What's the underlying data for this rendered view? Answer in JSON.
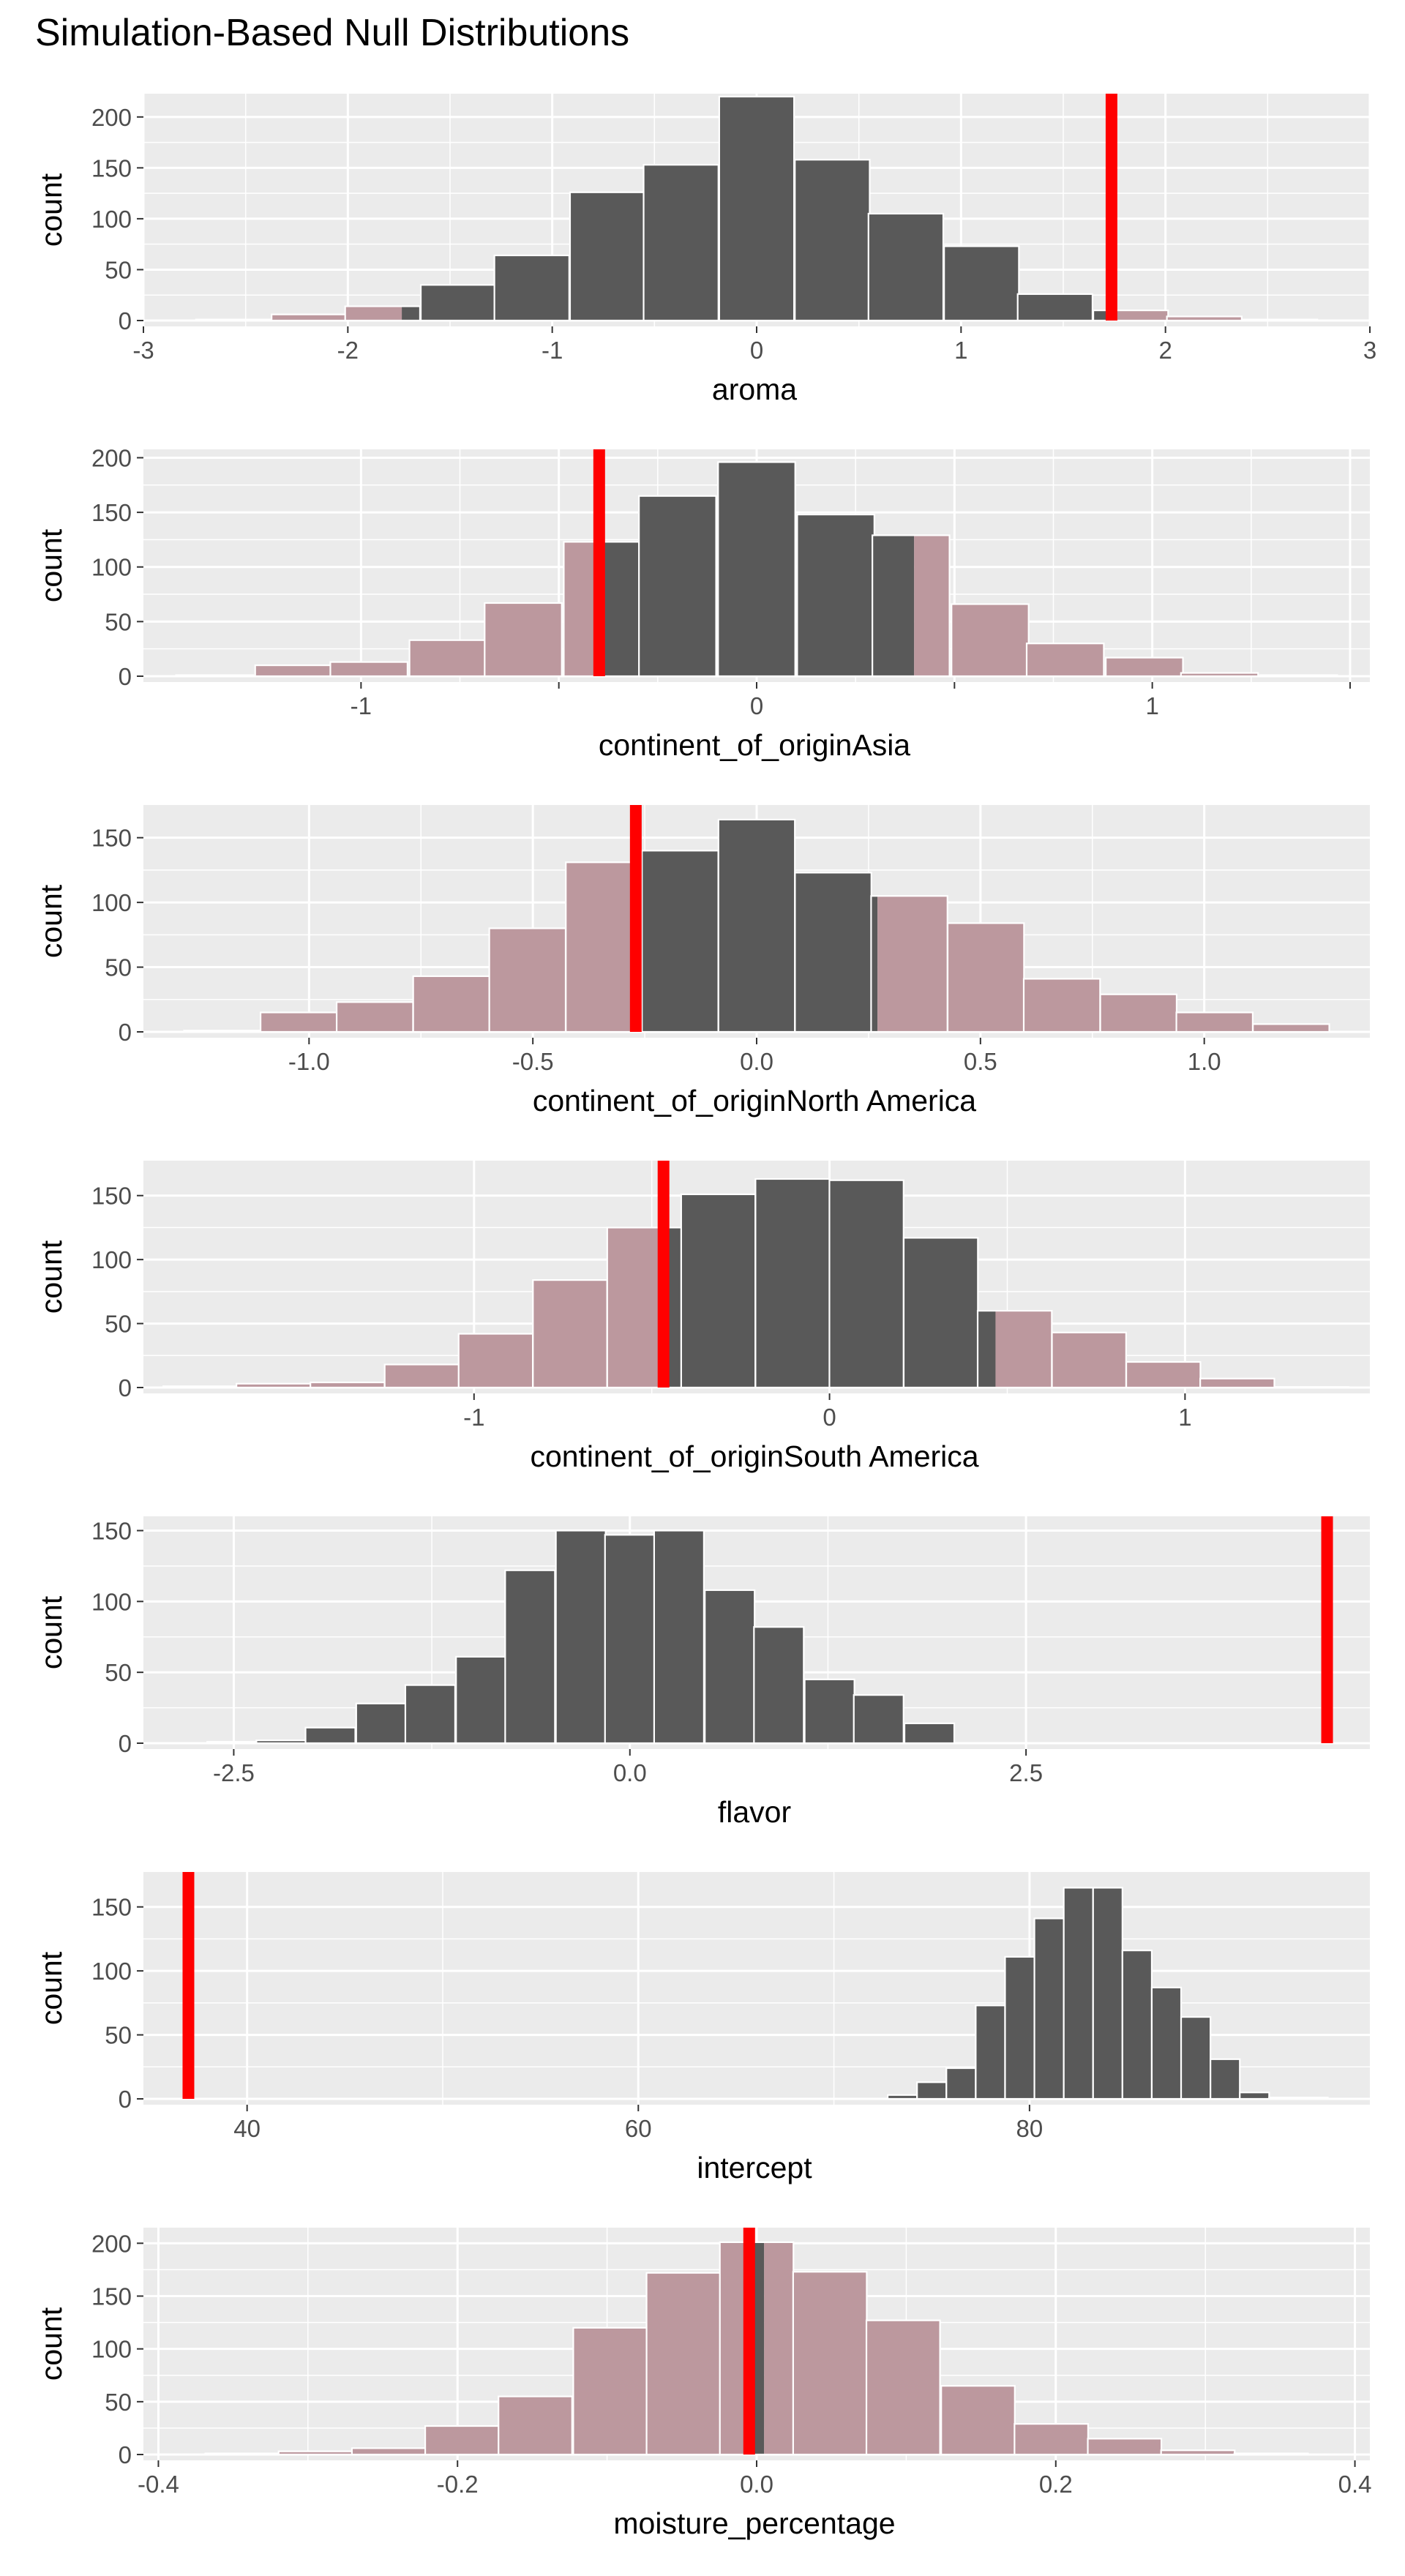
{
  "title": "Simulation-Based Null Distributions",
  "colors": {
    "panel_background": "#ebebeb",
    "gridline": "#ffffff",
    "bar_fill": "#595959",
    "shaded_fill": "#bc989e",
    "observed_line": "#ff0000",
    "bar_outline": "#ffffff"
  },
  "chart_data": [
    {
      "type": "bar",
      "xlabel": "aroma",
      "ylabel": "count",
      "xlim": [
        -3,
        3
      ],
      "ylim": [
        0,
        220
      ],
      "x_ticks": [
        -3,
        -2,
        -1,
        0,
        1,
        2,
        3
      ],
      "x_tick_labels": [
        "-3",
        "-2",
        "-1",
        "0",
        "1",
        "2",
        "3"
      ],
      "y_ticks": [
        0,
        50,
        100,
        150,
        200
      ],
      "y_tick_labels": [
        "0",
        "50",
        "100",
        "150",
        "200"
      ],
      "bin_width": 0.366,
      "bin_centers": [
        -2.56,
        -2.19,
        -1.83,
        -1.46,
        -1.1,
        -0.73,
        -0.37,
        0.0,
        0.37,
        0.73,
        1.1,
        1.46,
        1.83,
        2.19,
        2.56
      ],
      "counts": [
        1,
        6,
        14,
        35,
        64,
        126,
        153,
        220,
        158,
        105,
        73,
        26,
        10,
        4,
        1
      ],
      "shaded_below": -1.736,
      "shaded_above": 1.736,
      "observed": 1.736
    },
    {
      "type": "bar",
      "xlabel": "continent_of_originAsia",
      "ylabel": "count",
      "xlim": [
        -1.55,
        1.55
      ],
      "ylim": [
        0,
        205
      ],
      "x_ticks": [
        -1,
        -0.5,
        0,
        0.5,
        1,
        1.5
      ],
      "x_tick_labels": [
        "-1",
        "",
        "0",
        "",
        "1",
        ""
      ],
      "y_ticks": [
        0,
        50,
        100,
        150,
        200
      ],
      "y_tick_labels": [
        "0",
        "50",
        "100",
        "150",
        "200"
      ],
      "bin_width": 0.195,
      "bin_centers": [
        -1.37,
        -1.17,
        -0.98,
        -0.78,
        -0.59,
        -0.39,
        -0.2,
        0.0,
        0.2,
        0.39,
        0.59,
        0.78,
        0.98,
        1.17,
        1.37
      ],
      "counts": [
        1,
        10,
        13,
        33,
        67,
        123,
        165,
        196,
        148,
        129,
        66,
        30,
        17,
        3,
        1
      ],
      "shaded_below": -0.398,
      "shaded_above": 0.398,
      "observed": -0.398
    },
    {
      "type": "bar",
      "xlabel": "continent_of_originNorth America",
      "ylabel": "count",
      "xlim": [
        -1.37,
        1.37
      ],
      "ylim": [
        0,
        173
      ],
      "x_ticks": [
        -1.0,
        -0.5,
        0.0,
        0.5,
        1.0
      ],
      "x_tick_labels": [
        "-1.0",
        "-0.5",
        "0.0",
        "0.5",
        "1.0"
      ],
      "y_ticks": [
        0,
        50,
        100,
        150
      ],
      "y_tick_labels": [
        "0",
        "50",
        "100",
        "150"
      ],
      "bin_width": 0.1706,
      "bin_centers": [
        -1.194,
        -1.023,
        -0.853,
        -0.682,
        -0.512,
        -0.341,
        -0.171,
        0.0,
        0.171,
        0.341,
        0.512,
        0.682,
        0.853,
        1.023,
        1.194
      ],
      "counts": [
        1,
        15,
        23,
        43,
        80,
        131,
        140,
        164,
        123,
        105,
        84,
        41,
        29,
        15,
        6
      ],
      "shaded_below": -0.27,
      "shaded_above": 0.27,
      "observed": -0.27
    },
    {
      "type": "bar",
      "xlabel": "continent_of_originSouth America",
      "ylabel": "count",
      "xlim": [
        -1.93,
        1.52
      ],
      "ylim": [
        0,
        175
      ],
      "x_ticks": [
        -1,
        0,
        1
      ],
      "x_tick_labels": [
        "-1",
        "0",
        "1"
      ],
      "y_ticks": [
        0,
        50,
        100,
        150
      ],
      "y_tick_labels": [
        "0",
        "50",
        "100",
        "150"
      ],
      "bin_width": 0.2086,
      "bin_centers": [
        -1.77,
        -1.564,
        -1.356,
        -1.147,
        -0.939,
        -0.73,
        -0.521,
        -0.313,
        -0.104,
        0.104,
        0.313,
        0.521,
        0.73,
        0.939,
        1.147,
        1.356
      ],
      "counts": [
        1,
        3,
        4,
        18,
        42,
        84,
        125,
        151,
        163,
        162,
        117,
        60,
        43,
        20,
        7,
        0
      ],
      "shaded_below": -0.467,
      "shaded_above": 0.467,
      "observed": -0.467
    },
    {
      "type": "bar",
      "xlabel": "flavor",
      "ylabel": "count",
      "xlim": [
        -3.07,
        4.67
      ],
      "ylim": [
        0,
        158
      ],
      "x_ticks": [
        -2.5,
        0.0,
        2.5
      ],
      "x_tick_labels": [
        "-2.5",
        "0.0",
        "2.5"
      ],
      "y_ticks": [
        0,
        50,
        100,
        150
      ],
      "y_tick_labels": [
        "0",
        "50",
        "100",
        "150"
      ],
      "bin_width": 0.314,
      "bin_centers": [
        -2.51,
        -2.2,
        -1.89,
        -1.57,
        -1.26,
        -0.94,
        -0.63,
        -0.31,
        0.0,
        0.31,
        0.63,
        0.94,
        1.26,
        1.57,
        1.89
      ],
      "counts": [
        1,
        2,
        11,
        28,
        41,
        61,
        122,
        150,
        147,
        150,
        108,
        82,
        45,
        34,
        14
      ],
      "shaded_below": -4.4,
      "shaded_above": 4.4,
      "observed": 4.4
    },
    {
      "type": "bar",
      "xlabel": "intercept",
      "ylabel": "count",
      "xlim": [
        34.7,
        97.4
      ],
      "ylim": [
        0,
        175
      ],
      "x_ticks": [
        40,
        60,
        80
      ],
      "x_tick_labels": [
        "40",
        "60",
        "80"
      ],
      "y_ticks": [
        0,
        50,
        100,
        150
      ],
      "y_tick_labels": [
        "0",
        "50",
        "100",
        "150"
      ],
      "bin_width": 1.5,
      "bin_centers": [
        73.5,
        75.0,
        76.5,
        78.0,
        79.5,
        81.0,
        82.5,
        84.0,
        85.5,
        87.0,
        88.5,
        90.0,
        91.5,
        93.0,
        94.5
      ],
      "counts": [
        3,
        13,
        24,
        73,
        111,
        141,
        165,
        165,
        116,
        87,
        64,
        31,
        5,
        1,
        1
      ],
      "shaded_below": 37.0,
      "shaded_above": 131.0,
      "observed": 37.0
    },
    {
      "type": "bar",
      "xlabel": "moisture_percentage",
      "ylabel": "count",
      "xlim": [
        -0.41,
        0.41
      ],
      "ylim": [
        0,
        212
      ],
      "x_ticks": [
        -0.4,
        -0.2,
        0.0,
        0.2,
        0.4
      ],
      "x_tick_labels": [
        "-0.4",
        "-0.2",
        "0.0",
        "0.2",
        "0.4"
      ],
      "y_ticks": [
        0,
        50,
        100,
        150,
        200
      ],
      "y_tick_labels": [
        "0",
        "50",
        "100",
        "150",
        "200"
      ],
      "bin_width": 0.0492,
      "bin_centers": [
        -0.344,
        -0.295,
        -0.246,
        -0.197,
        -0.148,
        -0.098,
        -0.049,
        0.0,
        0.049,
        0.098,
        0.148,
        0.197,
        0.246,
        0.295,
        0.344
      ],
      "counts": [
        1,
        3,
        6,
        27,
        55,
        120,
        172,
        201,
        173,
        127,
        65,
        29,
        15,
        4,
        1
      ],
      "shaded_below": -0.005,
      "shaded_above": 0.005,
      "observed": -0.005
    }
  ]
}
